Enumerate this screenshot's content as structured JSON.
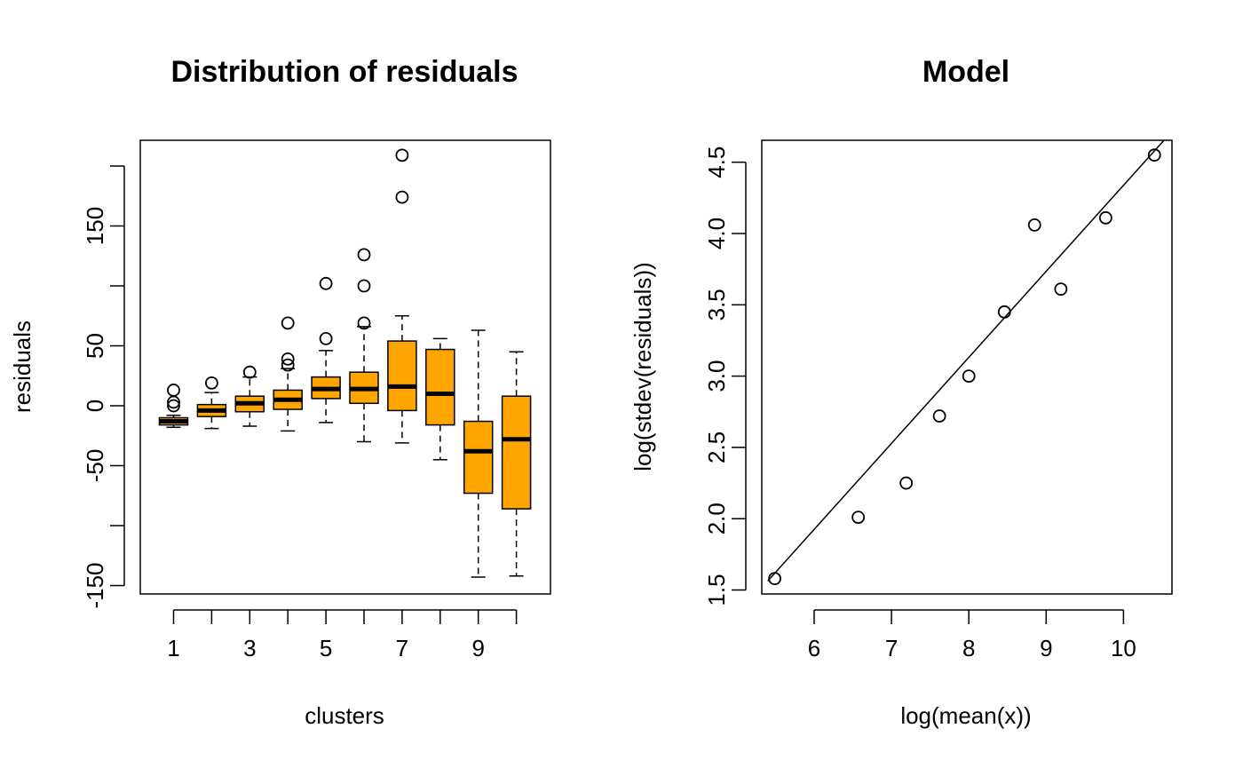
{
  "colors": {
    "box_fill": "#FFA500",
    "ink": "#000000",
    "background": "#ffffff"
  },
  "chart_data": [
    {
      "type": "box",
      "title": "Distribution of residuals",
      "xlabel": "clusters",
      "ylabel": "residuals",
      "ylim": [
        -150,
        210
      ],
      "yticks": [
        -150,
        -100,
        -50,
        0,
        50,
        100,
        150,
        200
      ],
      "ytick_labels": [
        "-150",
        "",
        "-50",
        "0",
        "50",
        "",
        "150",
        ""
      ],
      "xticks": [
        1,
        2,
        3,
        4,
        5,
        6,
        7,
        8,
        9,
        10
      ],
      "xtick_labels": [
        "1",
        "",
        "3",
        "",
        "5",
        "",
        "7",
        "",
        "9",
        ""
      ],
      "categories": [
        "1",
        "2",
        "3",
        "4",
        "5",
        "6",
        "7",
        "8",
        "9",
        "10"
      ],
      "boxes": [
        {
          "cluster": "1",
          "whisker_low": -18,
          "q1": -16,
          "median": -13,
          "q3": -10,
          "whisker_high": -8,
          "outliers": [
            13,
            3,
            0
          ]
        },
        {
          "cluster": "2",
          "whisker_low": -19,
          "q1": -9,
          "median": -4,
          "q3": 1,
          "whisker_high": 11,
          "outliers": [
            19
          ]
        },
        {
          "cluster": "3",
          "whisker_low": -17,
          "q1": -5,
          "median": 2,
          "q3": 8,
          "whisker_high": 24,
          "outliers": [
            28
          ]
        },
        {
          "cluster": "4",
          "whisker_low": -21,
          "q1": -3,
          "median": 5,
          "q3": 13,
          "whisker_high": 31,
          "outliers": [
            69,
            39,
            34
          ]
        },
        {
          "cluster": "5",
          "whisker_low": -14,
          "q1": 6,
          "median": 14,
          "q3": 24,
          "whisker_high": 46,
          "outliers": [
            102,
            56
          ]
        },
        {
          "cluster": "6",
          "whisker_low": -30,
          "q1": 2,
          "median": 14,
          "q3": 28,
          "whisker_high": 66,
          "outliers": [
            126,
            100,
            69
          ]
        },
        {
          "cluster": "7",
          "whisker_low": -31,
          "q1": -4,
          "median": 16,
          "q3": 54,
          "whisker_high": 75,
          "outliers": [
            209,
            174
          ]
        },
        {
          "cluster": "8",
          "whisker_low": -45,
          "q1": -16,
          "median": 10,
          "q3": 47,
          "whisker_high": 56,
          "outliers": []
        },
        {
          "cluster": "9",
          "whisker_low": -143,
          "q1": -73,
          "median": -38,
          "q3": -13,
          "whisker_high": 63,
          "outliers": []
        },
        {
          "cluster": "10",
          "whisker_low": -142,
          "q1": -86,
          "median": -28,
          "q3": 8,
          "whisker_high": 45,
          "outliers": []
        }
      ]
    },
    {
      "type": "scatter",
      "title": "Model",
      "xlabel": "log(mean(x))",
      "ylabel": "log(stdev(residuals))",
      "xlim": [
        5.4,
        10.7
      ],
      "ylim": [
        1.48,
        4.68
      ],
      "xticks": [
        6,
        7,
        8,
        9,
        10
      ],
      "xtick_labels": [
        "6",
        "7",
        "8",
        "9",
        "10"
      ],
      "yticks": [
        1.5,
        2.0,
        2.5,
        3.0,
        3.5,
        4.0,
        4.5
      ],
      "ytick_labels": [
        "1.5",
        "2.0",
        "2.5",
        "3.0",
        "3.5",
        "4.0",
        "4.5"
      ],
      "points": [
        {
          "x": 5.49,
          "y": 1.58
        },
        {
          "x": 6.57,
          "y": 2.01
        },
        {
          "x": 7.19,
          "y": 2.25
        },
        {
          "x": 7.62,
          "y": 2.72
        },
        {
          "x": 8.0,
          "y": 3.0
        },
        {
          "x": 8.46,
          "y": 3.45
        },
        {
          "x": 8.85,
          "y": 4.06
        },
        {
          "x": 9.19,
          "y": 3.61
        },
        {
          "x": 9.77,
          "y": 4.11
        },
        {
          "x": 10.4,
          "y": 4.55
        }
      ],
      "fit_line": {
        "intercept": -1.695,
        "slope": 0.6033
      }
    }
  ]
}
